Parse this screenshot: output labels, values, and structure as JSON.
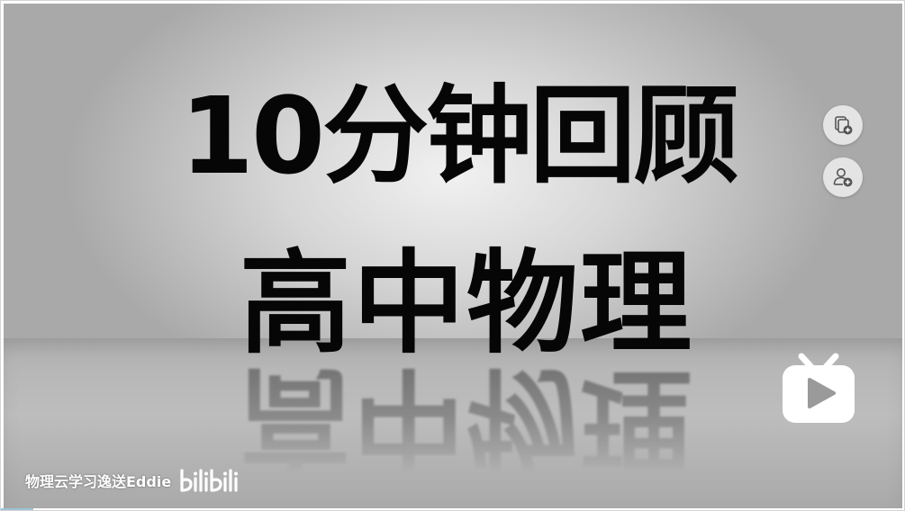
{
  "video": {
    "title_line_1": "10分钟回顾",
    "title_line_2": "高中物理",
    "reflection_text": "高中物理",
    "watermark": {
      "uploader": "物理云学习逸送Eddie",
      "platform_logo": "bilibili"
    }
  },
  "side_actions": [
    {
      "name": "collect",
      "icon": "collect-add-icon"
    },
    {
      "name": "follow",
      "icon": "follow-add-icon"
    }
  ],
  "overlay": {
    "play_logo_icon": "bilibili-tv-play-icon"
  },
  "colors": {
    "title_text": "#060606",
    "background_light": "#f1f1f1",
    "background_dark": "#a9a9a9",
    "button_bg": "#e4e4e4",
    "logo_white": "#ffffff"
  }
}
